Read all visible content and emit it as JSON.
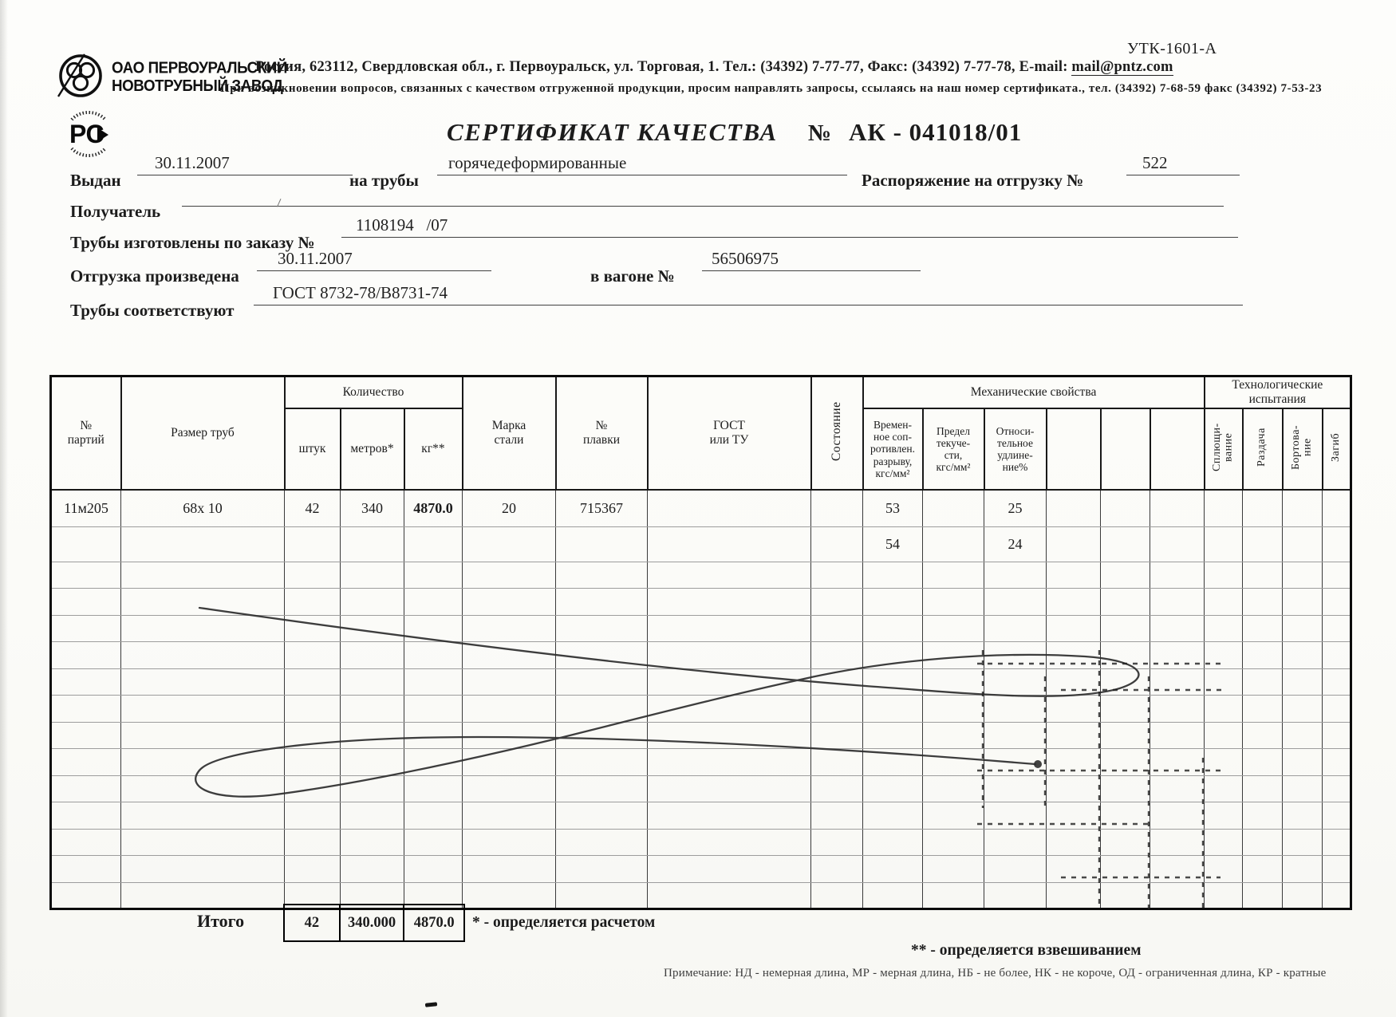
{
  "form_code": "УТК-1601-А",
  "company": {
    "name_line1": "ОАО ПЕРВОУРАЛЬСКИЙ",
    "name_line2": "НОВОТРУБНЫЙ  ЗАВОД",
    "rst_mark_text": "РС"
  },
  "header": {
    "address": "Россия, 623112, Свердловская обл., г. Первоуральск, ул. Торговая, 1. Тел.: (34392) 7-77-77, Факс: (34392) 7-77-78,  E-mail: ",
    "email": "mail@pntz.com",
    "support_note": "При возникновении вопросов, связанных с качеством отгруженной продукции, просим направлять запросы, ссылаясь на наш номер сертификата., тел. (34392) 7-68-59 факс (34392) 7-53-23"
  },
  "title": {
    "text": "СЕРТИФИКАТ КАЧЕСТВА",
    "num_sign": "№",
    "number": "АК -  041018/01"
  },
  "fields": {
    "issued_label": "Выдан",
    "issued_value": "30.11.2007",
    "pipes_label": "на трубы",
    "pipes_value": "горячедеформированные",
    "order_ship_label": "Распоряжение на отгрузку №",
    "order_ship_value": "522",
    "recipient_label": "Получатель",
    "recipient_value": "",
    "made_by_order_label": "Трубы изготовлены по заказу №",
    "made_by_order_value": "1108194   /07",
    "shipped_label": "Отгрузка произведена",
    "shipped_value": "30.11.2007",
    "wagon_label": "в вагоне №",
    "wagon_value": "56506975",
    "conform_label": "Трубы соответствуют",
    "conform_value": "ГОСТ 8732-78/В8731-74"
  },
  "table": {
    "headers": {
      "party": "№\nпартий",
      "size": "Размер труб",
      "qty_group": "Количество",
      "pcs": "штук",
      "meters": "метров*",
      "kg": "кг**",
      "steel": "Марка\nстали",
      "heat": "№\nплавки",
      "gost": "ГОСТ\nили ТУ",
      "state": "Состояние",
      "mech_group": "Механические свойства",
      "mech1": "Времен-\nное соп-\nротивлен.\nразрыву,\nкгс/мм²",
      "mech2": "Предел\nтекуче-\nсти,\nкгс/мм²",
      "mech3": "Относи-\nтельное\nудлине-\nние%",
      "tech_group": "Технологические\nиспытания",
      "tech1": "Сплющи-\nвание",
      "tech2": "Раздача",
      "tech3": "Бортова-\nние",
      "tech4": "Загиб"
    },
    "rows": [
      [
        "11м205",
        "68х 10",
        "42",
        "340",
        "4870.0",
        "20",
        "715367",
        "",
        "",
        "53",
        "",
        "25",
        "",
        "",
        "",
        "",
        "",
        "",
        ""
      ],
      [
        "",
        "",
        "",
        "",
        "",
        "",
        "",
        "",
        "",
        "54",
        "",
        "24",
        "",
        "",
        "",
        "",
        "",
        "",
        ""
      ]
    ],
    "empty_row_count": 13,
    "total_label": "Итого",
    "totals": [
      "42",
      "340.000",
      "4870.0"
    ]
  },
  "footnotes": {
    "calc": "*  - определяется расчетом",
    "weigh": "**  - определяется взвешиванием",
    "legend": "Примечание: НД - немерная длина, МР - мерная длина, НБ - не более, НК - не короче, ОД - ограниченная длина, КР -  кратные"
  }
}
